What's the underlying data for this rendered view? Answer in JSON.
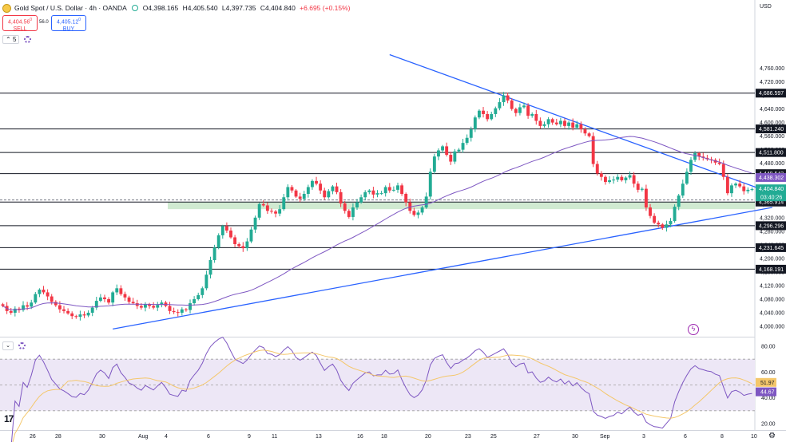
{
  "header": {
    "title": "Gold Spot / U.S. Dollar · 4h · OANDA",
    "open": "O4,398.165",
    "high": "H4,405.540",
    "low": "L4,397.735",
    "close": "C4,404.840",
    "change": "+6.695 (+0.15%)",
    "sell_price": "4,404.56",
    "sell_sup": "0",
    "sell_label": "SELL",
    "buy_price": "4,405.12",
    "buy_sup": "0",
    "buy_label": "BUY",
    "spread": "56.0",
    "indicator_count": "5"
  },
  "axis_unit": "USD",
  "colors": {
    "up": "#22ab94",
    "down": "#f23645",
    "ma": "#7e57c2",
    "trendline": "#2962ff",
    "zone": "#c8e6c9",
    "rsi_band": "#ede7f6",
    "rsi_ma": "#f4c76b",
    "oversold_fill": "#f8bbd0",
    "overbought_fill": "#c8e6c9"
  },
  "chart_data": [
    {
      "type": "candlestick",
      "title": "Gold Spot / U.S. Dollar · 4h · OANDA",
      "y_unit": "USD",
      "ylim": [
        3950,
        4800
      ],
      "y_ticks": [
        4000,
        4040,
        4080,
        4120,
        4160,
        4200,
        4240,
        4280,
        4320,
        4360,
        4400,
        4440,
        4480,
        4520,
        4560,
        4600,
        4640,
        4680,
        4720,
        4760
      ],
      "y_tick_labels": [
        "4,000.000",
        "4,040.000",
        "4,080.000",
        "4,120.000",
        "4,160.000",
        "4,200.000",
        "4,240.000",
        "4,280.000",
        "4,320.000",
        "4,360.000",
        "4,400.000",
        "4,440.000",
        "4,480.000",
        "4,520.000",
        "4,560.000",
        "4,600.000",
        "4,640.000",
        "4,680.000",
        "4,720.000",
        "4,760.000"
      ],
      "x_labels": [
        "26",
        "28",
        "30",
        "Aug",
        "4",
        "6",
        "9",
        "11",
        "13",
        "16",
        "18",
        "20",
        "23",
        "25",
        "27",
        "30",
        "Sep",
        "3",
        "6",
        "8",
        "10"
      ],
      "horizontal_levels": [
        {
          "value": 4686.597,
          "label": "4,686.597"
        },
        {
          "value": 4581.24,
          "label": "4,581.240"
        },
        {
          "value": 4511.8,
          "label": "4,511.800"
        },
        {
          "value": 4449.543,
          "label": "4,449.543"
        },
        {
          "value": 4365.914,
          "label": "4,365.914"
        },
        {
          "value": 4296.296,
          "label": "4,296.296"
        },
        {
          "value": 4231.645,
          "label": "4,231.645"
        },
        {
          "value": 4168.191,
          "label": "4,168.191"
        }
      ],
      "ma_value": {
        "value": 4438.302,
        "label": "4,438.302"
      },
      "last_price": {
        "value": 4404.84,
        "label": "4,404.840",
        "countdown": "03:40:26"
      },
      "support_zone": [
        4345,
        4366
      ],
      "trendlines": [
        {
          "name": "descending resistance",
          "from": {
            "i": 95,
            "value": 4800
          },
          "to": {
            "i": 187,
            "value": 4392
          }
        },
        {
          "name": "ascending support",
          "from": {
            "i": 27,
            "value": 3992
          },
          "to": {
            "i": 187,
            "value": 4350
          }
        }
      ],
      "closes": [
        4060,
        4045,
        4040,
        4052,
        4048,
        4062,
        4058,
        4070,
        4095,
        4108,
        4100,
        4088,
        4072,
        4062,
        4050,
        4045,
        4038,
        4030,
        4028,
        4035,
        4032,
        4040,
        4055,
        4075,
        4085,
        4080,
        4070,
        4100,
        4112,
        4095,
        4085,
        4072,
        4068,
        4060,
        4055,
        4065,
        4060,
        4055,
        4063,
        4070,
        4060,
        4045,
        4042,
        4040,
        4050,
        4048,
        4068,
        4080,
        4092,
        4112,
        4152,
        4195,
        4232,
        4268,
        4295,
        4282,
        4262,
        4242,
        4236,
        4230,
        4250,
        4285,
        4320,
        4360,
        4356,
        4340,
        4338,
        4332,
        4345,
        4380,
        4410,
        4400,
        4382,
        4375,
        4390,
        4410,
        4428,
        4420,
        4400,
        4380,
        4398,
        4412,
        4395,
        4362,
        4340,
        4322,
        4350,
        4365,
        4380,
        4395,
        4400,
        4388,
        4392,
        4392,
        4410,
        4400,
        4402,
        4415,
        4390,
        4365,
        4340,
        4328,
        4335,
        4350,
        4382,
        4455,
        4500,
        4518,
        4530,
        4505,
        4485,
        4515,
        4520,
        4540,
        4555,
        4580,
        4615,
        4635,
        4625,
        4610,
        4625,
        4642,
        4660,
        4680,
        4665,
        4640,
        4628,
        4645,
        4650,
        4620,
        4625,
        4605,
        4590,
        4595,
        4610,
        4600,
        4595,
        4605,
        4590,
        4600,
        4585,
        4595,
        4580,
        4568,
        4560,
        4478,
        4450,
        4440,
        4425,
        4430,
        4432,
        4440,
        4430,
        4438,
        4445,
        4420,
        4402,
        4405,
        4350,
        4325,
        4305,
        4300,
        4290,
        4300,
        4310,
        4352,
        4385,
        4420,
        4455,
        4490,
        4510,
        4500,
        4496,
        4492,
        4490,
        4482,
        4478,
        4440,
        4392,
        4415,
        4420,
        4412,
        4398,
        4402,
        4404
      ]
    },
    {
      "type": "line",
      "title": "RSI",
      "ylim": [
        15,
        87
      ],
      "y_ticks": [
        20,
        40,
        60,
        80
      ],
      "y_tick_labels": [
        "20.00",
        "40.00",
        "60.00",
        "80.00"
      ],
      "band": [
        30,
        70
      ],
      "mid": 50,
      "rsi_ma_value": {
        "value": 51.97,
        "label": "51.97"
      },
      "rsi_value": {
        "value": 44.67,
        "label": "44.67"
      }
    }
  ]
}
